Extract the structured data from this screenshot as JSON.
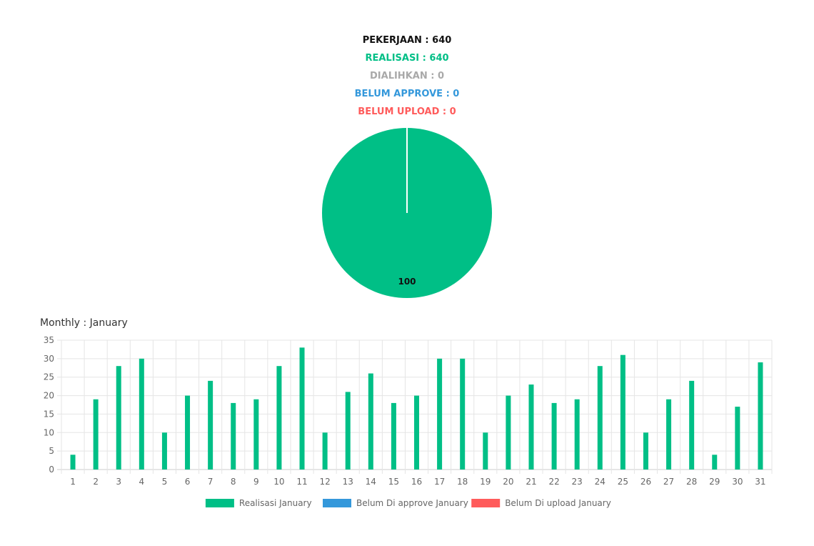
{
  "stats": {
    "pekerjaan": {
      "text": "PEKERJAAN : 640",
      "color": "#111111"
    },
    "realisasi": {
      "text": "REALISASI : 640",
      "color": "#00bf86"
    },
    "dialihkan": {
      "text": "DIALIHKAN : 0",
      "color": "#a9a9a9"
    },
    "belum_approve": {
      "text": "BELUM APPROVE : 0",
      "color": "#3498db"
    },
    "belum_upload": {
      "text": "BELUM UPLOAD : 0",
      "color": "#ff5b5b"
    }
  },
  "pie_chart": {
    "chart_data": {
      "type": "pie",
      "slices": [
        {
          "value": 100,
          "color": "#00bf86",
          "label": "100"
        },
        {
          "value": 0,
          "color": "#3498db"
        },
        {
          "value": 0,
          "color": "#ff5b5b"
        }
      ]
    }
  },
  "monthly": {
    "title": "Monthly : January"
  },
  "chart_data": {
    "type": "bar",
    "categories": [
      "1",
      "2",
      "3",
      "4",
      "5",
      "6",
      "7",
      "8",
      "9",
      "10",
      "11",
      "12",
      "13",
      "14",
      "15",
      "16",
      "17",
      "18",
      "19",
      "20",
      "21",
      "22",
      "23",
      "24",
      "25",
      "26",
      "27",
      "28",
      "29",
      "30",
      "31"
    ],
    "series": [
      {
        "name": "Realisasi January",
        "color": "#00bf86",
        "values": [
          4,
          19,
          28,
          30,
          10,
          20,
          24,
          18,
          19,
          28,
          33,
          10,
          21,
          26,
          18,
          20,
          30,
          30,
          10,
          20,
          23,
          18,
          19,
          28,
          31,
          10,
          19,
          24,
          4,
          17,
          29
        ]
      },
      {
        "name": "Belum Di approve January",
        "color": "#3498db",
        "values": [
          0,
          0,
          0,
          0,
          0,
          0,
          0,
          0,
          0,
          0,
          0,
          0,
          0,
          0,
          0,
          0,
          0,
          0,
          0,
          0,
          0,
          0,
          0,
          0,
          0,
          0,
          0,
          0,
          0,
          0,
          0
        ]
      },
      {
        "name": "Belum Di upload January",
        "color": "#ff5b5b",
        "values": [
          0,
          0,
          0,
          0,
          0,
          0,
          0,
          0,
          0,
          0,
          0,
          0,
          0,
          0,
          0,
          0,
          0,
          0,
          0,
          0,
          0,
          0,
          0,
          0,
          0,
          0,
          0,
          0,
          0,
          0,
          0
        ]
      }
    ],
    "yticks": [
      0,
      5,
      10,
      15,
      20,
      25,
      30,
      35
    ],
    "ylim": [
      0,
      35
    ],
    "grid": true,
    "legend": "bottom"
  }
}
